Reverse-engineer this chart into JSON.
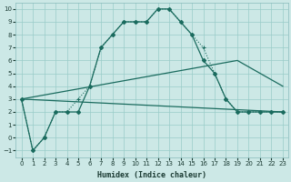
{
  "xlabel": "Humidex (Indice chaleur)",
  "bg_color": "#cce8e6",
  "grid_color": "#99ccc8",
  "line_color": "#1a6b5e",
  "xlim": [
    -0.5,
    23.5
  ],
  "ylim": [
    -1.5,
    10.5
  ],
  "xticks": [
    0,
    1,
    2,
    3,
    4,
    5,
    6,
    7,
    8,
    9,
    10,
    11,
    12,
    13,
    14,
    15,
    16,
    17,
    18,
    19,
    20,
    21,
    22,
    23
  ],
  "yticks": [
    -1,
    0,
    1,
    2,
    3,
    4,
    5,
    6,
    7,
    8,
    9,
    10
  ],
  "dot_x": [
    0,
    1,
    2,
    3,
    4,
    5,
    6,
    7,
    8,
    9,
    10,
    11,
    12,
    13,
    14,
    15,
    16,
    17,
    18,
    19,
    20,
    21,
    22,
    23
  ],
  "dot_y": [
    3,
    -1,
    0,
    2,
    2,
    3,
    4,
    7,
    8,
    9,
    9,
    9,
    10,
    10,
    9,
    8,
    7,
    5,
    3,
    2,
    2,
    2,
    2,
    2
  ],
  "solid_x": [
    0,
    1,
    2,
    3,
    4,
    5,
    6,
    7,
    8,
    9,
    10,
    11,
    12,
    13,
    14,
    15,
    16,
    17,
    18,
    19,
    20,
    21,
    22,
    23
  ],
  "solid_y": [
    3,
    -1,
    0,
    2,
    2,
    2,
    4,
    7,
    8,
    9,
    9,
    9,
    10,
    10,
    9,
    8,
    6,
    5,
    3,
    2,
    2,
    2,
    2,
    2
  ],
  "line1_x": [
    0,
    23
  ],
  "line1_y": [
    3,
    2
  ],
  "line2_x": [
    0,
    19,
    23
  ],
  "line2_y": [
    3,
    6,
    4
  ]
}
